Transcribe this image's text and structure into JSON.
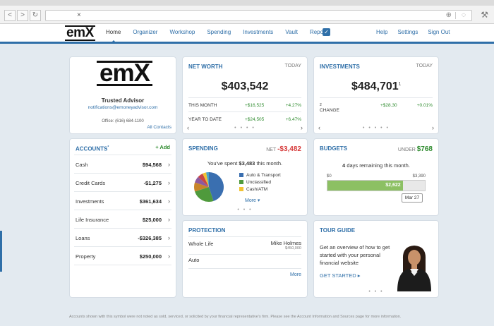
{
  "browser": {
    "back": "<",
    "forward": ">",
    "refresh": "↻",
    "url": "",
    "close_glyph": "×",
    "globe_glyph": "⊕",
    "page_glyph": "◌",
    "tools_glyph": "⚒"
  },
  "nav": {
    "logo": "em",
    "logo_x": "X",
    "items": [
      "Home",
      "Organizer",
      "Workshop",
      "Spending",
      "Investments",
      "Vault",
      "Reports"
    ],
    "right_items": [
      "Help",
      "Settings",
      "Sign Out"
    ],
    "checkbox_glyph": "✓"
  },
  "advisor": {
    "logo": "em",
    "logo_x": "X",
    "title": "Trusted Advisor",
    "email": "notifications@emoneyadvisor.com",
    "office": "Office: (616) 684-1100",
    "all_contacts": "All Contacts"
  },
  "net_worth": {
    "title": "NET WORTH",
    "period": "TODAY",
    "amount": "$403,542",
    "rows": [
      {
        "label": "THIS MONTH",
        "value": "+$16,525",
        "pct": "+4.27%"
      },
      {
        "label": "YEAR TO DATE",
        "value": "+$24,505",
        "pct": "+6.47%"
      }
    ],
    "dots": "• • • •"
  },
  "investments": {
    "title": "INVESTMENTS",
    "period": "TODAY",
    "amount": "$484,701",
    "amount_sup": "1",
    "change_label": "CHANGE",
    "change_sup": "2",
    "change_value": "+$28.30",
    "change_pct": "+0.01%",
    "dots": "• • • • •"
  },
  "accounts": {
    "title": "ACCOUNTS",
    "title_sup": "*",
    "add": "+ Add",
    "chevron": "›",
    "rows": [
      {
        "name": "Cash",
        "value": "$94,568"
      },
      {
        "name": "Credit Cards",
        "value": "-$1,275"
      },
      {
        "name": "Investments",
        "value": "$361,634"
      },
      {
        "name": "Life Insurance",
        "value": "$25,000"
      },
      {
        "name": "Loans",
        "value": "-$326,385"
      },
      {
        "name": "Property",
        "value": "$250,000"
      }
    ]
  },
  "spending": {
    "title": "SPENDING",
    "net_label": "NET",
    "net_value": "-$3,482",
    "text_prefix": "You've spent",
    "text_amount": "$3,483",
    "text_suffix": "this month.",
    "legend": [
      {
        "name": "Auto & Transport",
        "color": "#3a6fb0"
      },
      {
        "name": "Unclassified",
        "color": "#4f9a3c"
      },
      {
        "name": "Cash/ATM",
        "color": "#f1c232"
      }
    ],
    "pie_colors": [
      "#3a6fb0",
      "#4f9a3c",
      "#c8842a",
      "#8e5a9e",
      "#c94545",
      "#f1c232",
      "#4aa3c9"
    ],
    "more": "More ▾",
    "dots": "• • •"
  },
  "budgets": {
    "title": "BUDGETS",
    "under_label": "UNDER",
    "under_value": "$768",
    "days": "4",
    "days_text": "days remaining this month.",
    "min": "$0",
    "max": "$3,390",
    "spent": "$2,622",
    "spent_fraction": 0.773,
    "date": "Mar 27"
  },
  "protection": {
    "title": "PROTECTION",
    "rows": [
      {
        "name": "Whole Life",
        "holder": "Mike Holmes",
        "amount": "$450,000"
      },
      {
        "name": "Auto",
        "holder": "",
        "amount": ""
      }
    ],
    "more": "More"
  },
  "tour": {
    "title": "TOUR GUIDE",
    "text": "Get an overview of how to get started with your personal financial website",
    "link": "GET STARTED ▸",
    "dots": "• • •"
  },
  "footnote": "Accounts shown with this symbol were not noted as sold, serviced, or solicited by your financial representative's firm. Please see the Account Information and Sources page for more information."
}
